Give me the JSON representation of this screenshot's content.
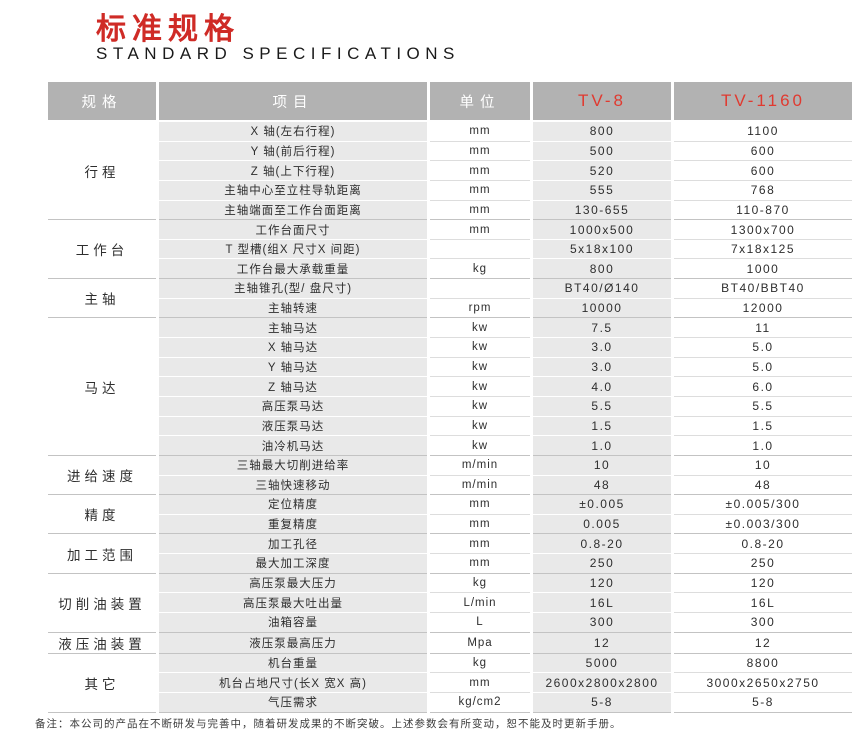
{
  "page": {
    "title_cn": "标准规格",
    "title_en": "STANDARD SPECIFICATIONS",
    "footnote": "备注：本公司的产品在不断研发与完善中，随着研发成果的不断突破。上述参数会有所变动，恕不能及时更新手册。"
  },
  "colors": {
    "accent_red_title": "#cf2b26",
    "accent_red_model": "#e03a30",
    "header_bg": "#b2b2b2",
    "header_text": "#ffffff",
    "stripe_bg": "#e9e9e9",
    "body_text": "#2e2e2e"
  },
  "table": {
    "headers": {
      "spec": "规格",
      "item": "项目",
      "unit": "单位",
      "model1": "TV-8",
      "model2": "TV-1160"
    },
    "sections": [
      {
        "name": "行程",
        "rows": [
          [
            "X 轴(左右行程)",
            "mm",
            "800",
            "1100"
          ],
          [
            "Y 轴(前后行程)",
            "mm",
            "500",
            "600"
          ],
          [
            "Z 轴(上下行程)",
            "mm",
            "520",
            "600"
          ],
          [
            "主轴中心至立柱导轨距离",
            "mm",
            "555",
            "768"
          ],
          [
            "主轴端面至工作台面距离",
            "mm",
            "130-655",
            "110-870"
          ]
        ]
      },
      {
        "name": "工作台",
        "rows": [
          [
            "工作台面尺寸",
            "mm",
            "1000x500",
            "1300x700"
          ],
          [
            "T 型槽(组X 尺寸X 间距)",
            "",
            "5x18x100",
            "7x18x125"
          ],
          [
            "工作台最大承载重量",
            "kg",
            "800",
            "1000"
          ]
        ]
      },
      {
        "name": "主轴",
        "rows": [
          [
            "主轴锥孔(型/ 盘尺寸)",
            "",
            "BT40/Ø140",
            "BT40/BBT40"
          ],
          [
            "主轴转速",
            "rpm",
            "10000",
            "12000"
          ]
        ]
      },
      {
        "name": "马达",
        "rows": [
          [
            "主轴马达",
            "kw",
            "7.5",
            "11"
          ],
          [
            "X 轴马达",
            "kw",
            "3.0",
            "5.0"
          ],
          [
            "Y 轴马达",
            "kw",
            "3.0",
            "5.0"
          ],
          [
            "Z 轴马达",
            "kw",
            "4.0",
            "6.0"
          ],
          [
            "高压泵马达",
            "kw",
            "5.5",
            "5.5"
          ],
          [
            "液压泵马达",
            "kw",
            "1.5",
            "1.5"
          ],
          [
            "油冷机马达",
            "kw",
            "1.0",
            "1.0"
          ]
        ]
      },
      {
        "name": "进给速度",
        "rows": [
          [
            "三轴最大切削进给率",
            "m/min",
            "10",
            "10"
          ],
          [
            "三轴快速移动",
            "m/min",
            "48",
            "48"
          ]
        ]
      },
      {
        "name": "精度",
        "rows": [
          [
            "定位精度",
            "mm",
            "±0.005",
            "±0.005/300"
          ],
          [
            "重复精度",
            "mm",
            "0.005",
            "±0.003/300"
          ]
        ]
      },
      {
        "name": "加工范围",
        "rows": [
          [
            "加工孔径",
            "mm",
            "0.8-20",
            "0.8-20"
          ],
          [
            "最大加工深度",
            "mm",
            "250",
            "250"
          ]
        ]
      },
      {
        "name": "切削油装置",
        "rows": [
          [
            "高压泵最大压力",
            "kg",
            "120",
            "120"
          ],
          [
            "高压泵最大吐出量",
            "L/min",
            "16L",
            "16L"
          ],
          [
            "油箱容量",
            "L",
            "300",
            "300"
          ]
        ]
      },
      {
        "name": "液压油装置",
        "rows": [
          [
            "液压泵最高压力",
            "Mpa",
            "12",
            "12"
          ]
        ]
      },
      {
        "name": "其它",
        "rows": [
          [
            "机台重量",
            "kg",
            "5000",
            "8800"
          ],
          [
            "机台占地尺寸(长X 宽X 高)",
            "mm",
            "2600x2800x2800",
            "3000x2650x2750"
          ],
          [
            "气压需求",
            "kg/cm2",
            "5-8",
            "5-8"
          ]
        ]
      }
    ]
  }
}
